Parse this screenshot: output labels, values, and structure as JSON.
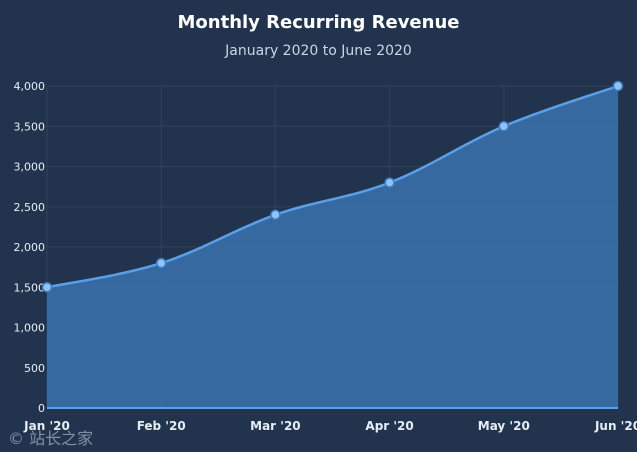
{
  "chart_data": {
    "type": "area",
    "title": "Monthly Recurring Revenue",
    "subtitle": "January 2020 to June 2020",
    "categories": [
      "Jan '20",
      "Feb '20",
      "Mar '20",
      "Apr '20",
      "May '20",
      "Jun '20"
    ],
    "series": [
      {
        "values": [
          1500,
          1800,
          2400,
          2800,
          3500,
          4000
        ]
      }
    ],
    "xlabel": "",
    "ylabel": "",
    "ylim": [
      0,
      4000
    ],
    "yticks": [
      "0",
      "500",
      "1,000",
      "1,500",
      "2,000",
      "2,500",
      "3,000",
      "3,500",
      "4,000"
    ],
    "ytick_values": [
      0,
      500,
      1000,
      1500,
      2000,
      2500,
      3000,
      3500,
      4000
    ],
    "grid": true,
    "legend": "none",
    "colors": {
      "background": "#22344d",
      "line": "#5aa0e8",
      "fill": "#3a6ea8",
      "marker_fill": "#8fc3f5",
      "marker_stroke": "#3f7bc2",
      "grid": "#2c4260"
    }
  },
  "watermark": "© 站长之家"
}
